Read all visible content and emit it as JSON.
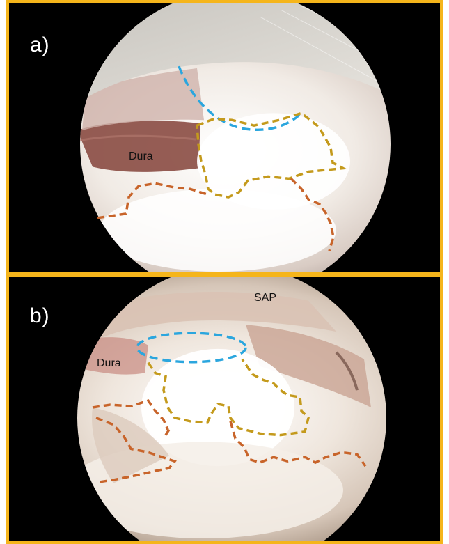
{
  "figure": {
    "frame_color": "#f5b51b",
    "outline_colors": {
      "blue": "#2ba6de",
      "gold": "#c49a1c",
      "orange": "#c8642a"
    },
    "panels": [
      {
        "letter": "a)",
        "labels": {
          "dura": "Dura"
        }
      },
      {
        "letter": "b)",
        "labels": {
          "dura": "Dura",
          "sap": "SAP"
        }
      }
    ]
  }
}
